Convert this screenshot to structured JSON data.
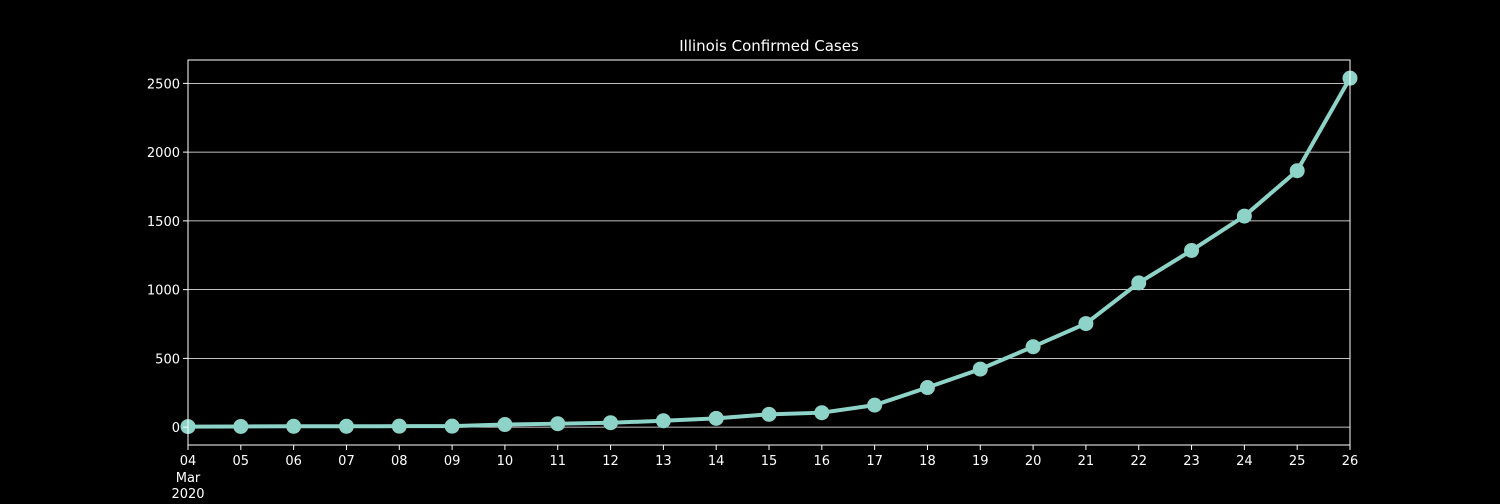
{
  "chart_data": {
    "type": "line",
    "title": "Illinois Confirmed Cases",
    "xlabel": "",
    "ylabel": "",
    "x": [
      "2020-03-04",
      "2020-03-05",
      "2020-03-06",
      "2020-03-07",
      "2020-03-08",
      "2020-03-09",
      "2020-03-10",
      "2020-03-11",
      "2020-03-12",
      "2020-03-13",
      "2020-03-14",
      "2020-03-15",
      "2020-03-16",
      "2020-03-17",
      "2020-03-18",
      "2020-03-19",
      "2020-03-20",
      "2020-03-21",
      "2020-03-22",
      "2020-03-23",
      "2020-03-24",
      "2020-03-25",
      "2020-03-26"
    ],
    "x_tick_labels": [
      "04",
      "05",
      "06",
      "07",
      "08",
      "09",
      "10",
      "11",
      "12",
      "13",
      "14",
      "15",
      "16",
      "17",
      "18",
      "19",
      "20",
      "21",
      "22",
      "23",
      "24",
      "25",
      "26"
    ],
    "x_sub_label": [
      "Mar",
      "2020"
    ],
    "series": [
      {
        "values": [
          4,
          5,
          6,
          6,
          7,
          7,
          19,
          25,
          32,
          46,
          64,
          93,
          105,
          160,
          288,
          422,
          585,
          753,
          1049,
          1285,
          1535,
          1865,
          2538
        ]
      }
    ],
    "yticks": [
      0,
      500,
      1000,
      1500,
      2000,
      2500
    ],
    "ytick_labels": [
      "0",
      "500",
      "1000",
      "1500",
      "2000",
      "2500"
    ],
    "ylim": [
      -130,
      2670
    ],
    "grid": "horizontal",
    "legend": "none",
    "colors": {
      "background": "#000000",
      "axes": "#ffffff",
      "grid": "#ffffff",
      "series": "#8dd3c7",
      "text": "#ffffff"
    }
  }
}
